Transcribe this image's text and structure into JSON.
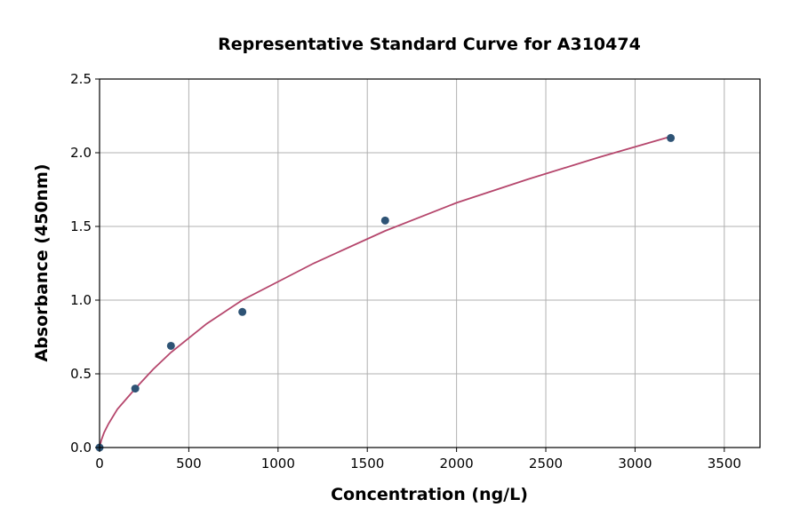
{
  "chart_data": {
    "type": "scatter",
    "title": "Representative Standard Curve for A310474",
    "xlabel": "Concentration (ng/L)",
    "ylabel": "Absorbance (450nm)",
    "xlim": [
      0,
      3700
    ],
    "ylim": [
      0,
      2.5
    ],
    "xticks": [
      0,
      500,
      1000,
      1500,
      2000,
      2500,
      3000,
      3500
    ],
    "yticks": [
      "0.0",
      "0.5",
      "1.0",
      "1.5",
      "2.0",
      "2.5"
    ],
    "grid": true,
    "points": [
      [
        0,
        0.0
      ],
      [
        200,
        0.4
      ],
      [
        400,
        0.69
      ],
      [
        800,
        0.92
      ],
      [
        1600,
        1.54
      ],
      [
        3200,
        2.1
      ]
    ],
    "fit_curve": [
      [
        0,
        0
      ],
      [
        10,
        0.05
      ],
      [
        25,
        0.1
      ],
      [
        50,
        0.16
      ],
      [
        100,
        0.26
      ],
      [
        200,
        0.4
      ],
      [
        300,
        0.53
      ],
      [
        400,
        0.645
      ],
      [
        600,
        0.84
      ],
      [
        800,
        1.0
      ],
      [
        1200,
        1.25
      ],
      [
        1600,
        1.47
      ],
      [
        2000,
        1.66
      ],
      [
        2400,
        1.82
      ],
      [
        2800,
        1.97
      ],
      [
        3200,
        2.11
      ]
    ],
    "colors": {
      "points": "#2e5375",
      "curve": "#b5466c",
      "grid": "#b0b0b0"
    }
  }
}
